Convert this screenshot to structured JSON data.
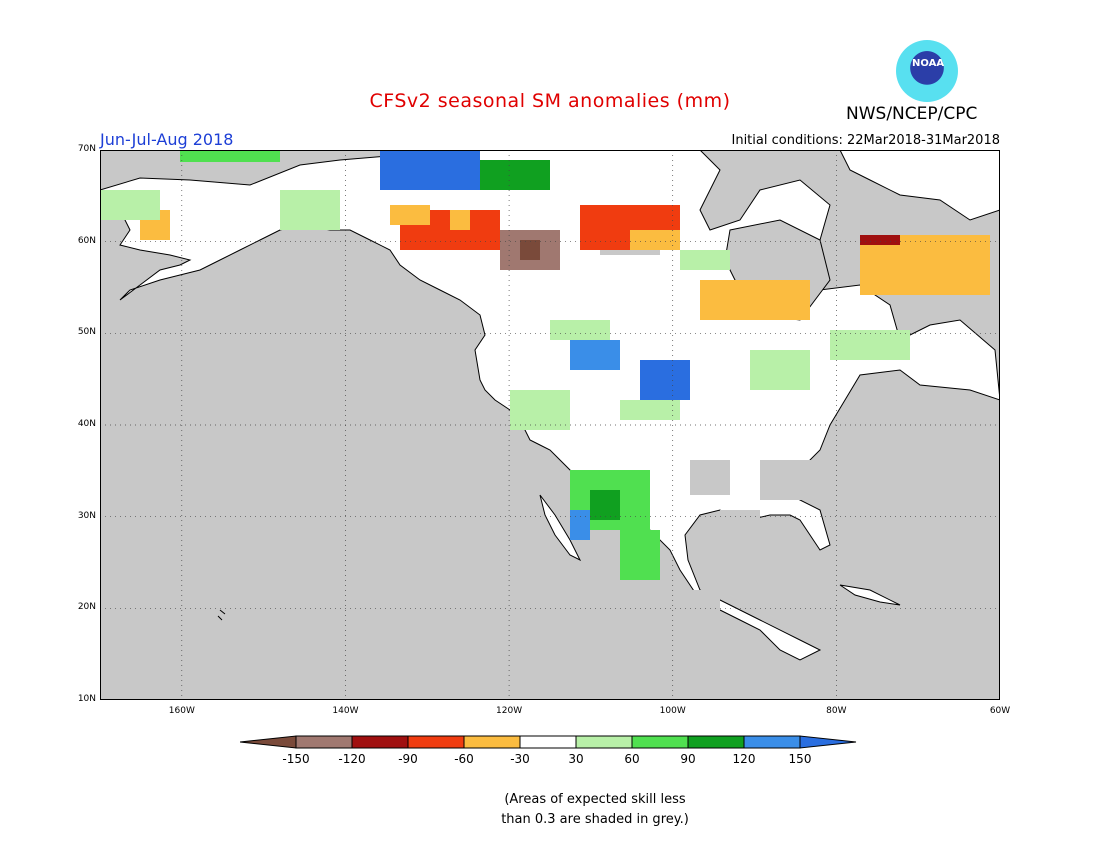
{
  "header": {
    "title": "CFSv2 seasonal SM anomalies (mm)",
    "agency": "NWS/NCEP/CPC",
    "logo_text": "NOAA",
    "season": "Jun-Jul-Aug 2018",
    "initial_conditions": "Initial conditions: 22Mar2018-31Mar2018"
  },
  "axes": {
    "lat_labels": [
      "70N",
      "60N",
      "50N",
      "40N",
      "30N",
      "20N",
      "10N"
    ],
    "lon_labels": [
      "160W",
      "140W",
      "120W",
      "100W",
      "80W",
      "60W"
    ]
  },
  "legend": {
    "ticks": [
      "-150",
      "-120",
      "-90",
      "-60",
      "-30",
      "30",
      "60",
      "90",
      "120",
      "150"
    ],
    "colors": [
      "#7a4a3a",
      "#a07870",
      "#a01010",
      "#f03c10",
      "#fbbc40",
      "#ffffff",
      "#b8f0a8",
      "#50e050",
      "#10a020",
      "#3a8ee8",
      "#2a6ee0"
    ]
  },
  "note": {
    "line1": "(Areas of expected skill less",
    "line2": "than 0.3 are shaded in grey.)"
  },
  "colors": {
    "ocean": "#c8c8c8",
    "land": "#ffffff",
    "low_skill": "#c8c8c8",
    "title": "#e00000",
    "season": "#1d3fd6"
  }
}
